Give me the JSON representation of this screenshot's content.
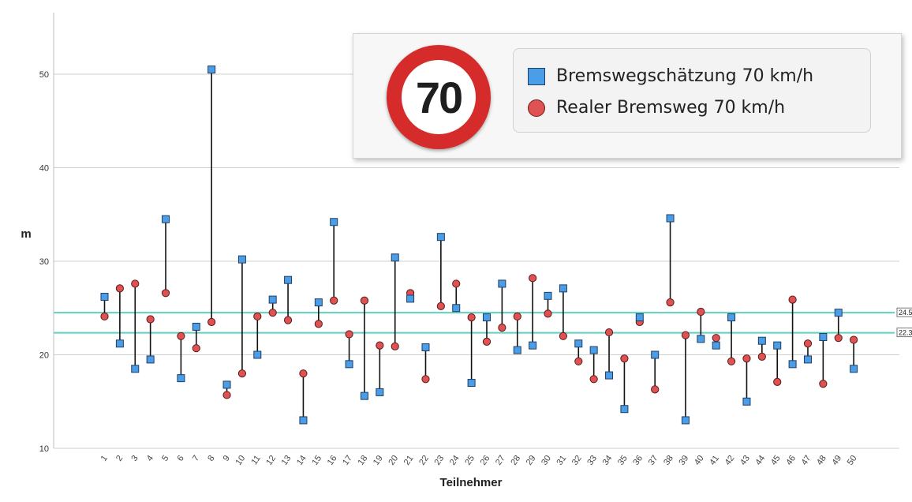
{
  "chart_data": {
    "type": "scatter",
    "ylabel": "m",
    "xlabel": "Teilnehmer",
    "ylim": [
      10,
      55
    ],
    "yticks": [
      10,
      20,
      30,
      40,
      50
    ],
    "grid": "horizontal",
    "legend_position": "top-right",
    "categories": [
      "1",
      "2",
      "3",
      "4",
      "5",
      "6",
      "7",
      "8",
      "9",
      "10",
      "11",
      "12",
      "13",
      "14",
      "15",
      "16",
      "17",
      "18",
      "19",
      "20",
      "21",
      "22",
      "23",
      "24",
      "25",
      "26",
      "27",
      "28",
      "29",
      "30",
      "31",
      "32",
      "33",
      "34",
      "35",
      "36",
      "37",
      "38",
      "39",
      "40",
      "41",
      "42",
      "43",
      "44",
      "45",
      "46",
      "47",
      "48",
      "49",
      "50"
    ],
    "series": [
      {
        "name": "Bremswegschätzung 70 km/h",
        "marker": "square",
        "color": "#4a9de6",
        "values": [
          26.2,
          21.2,
          18.5,
          19.5,
          34.5,
          17.5,
          23.0,
          50.5,
          16.8,
          30.2,
          20.0,
          25.9,
          28.0,
          13.0,
          25.6,
          34.2,
          19.0,
          15.6,
          16.0,
          30.4,
          26.0,
          20.8,
          32.6,
          25.0,
          17.0,
          24.0,
          27.6,
          20.5,
          21.0,
          26.3,
          27.1,
          21.2,
          20.5,
          17.8,
          14.2,
          24.0,
          20.0,
          34.6,
          13.0,
          21.7,
          21.0,
          24.0,
          15.0,
          21.5,
          21.0,
          19.0,
          19.5,
          21.9,
          24.5,
          18.5
        ]
      },
      {
        "name": "Realer Bremsweg 70 km/h",
        "marker": "circle",
        "color": "#e05252",
        "values": [
          24.1,
          27.1,
          27.6,
          23.8,
          26.6,
          22.0,
          20.7,
          23.5,
          15.7,
          18.0,
          24.1,
          24.5,
          23.7,
          18.0,
          23.3,
          25.8,
          22.2,
          25.8,
          21.0,
          20.9,
          26.6,
          17.4,
          25.2,
          27.6,
          24.0,
          21.4,
          22.9,
          24.1,
          28.2,
          24.4,
          22.0,
          19.3,
          17.4,
          22.4,
          19.6,
          23.5,
          16.3,
          25.6,
          22.1,
          24.6,
          21.8,
          19.3,
          19.6,
          19.8,
          17.1,
          25.9,
          21.2,
          16.9,
          21.8,
          21.6
        ]
      }
    ],
    "reference_lines": [
      {
        "value": 24.5,
        "label": "24.5",
        "color": "#5fd0c0"
      },
      {
        "value": 22.35,
        "label": "22.35",
        "color": "#5fd0c0"
      }
    ]
  },
  "legend": {
    "sign_text": "70",
    "items": [
      {
        "label": "Bremswegschätzung 70 km/h"
      },
      {
        "label": "Realer Bremsweg 70 km/h"
      }
    ]
  }
}
